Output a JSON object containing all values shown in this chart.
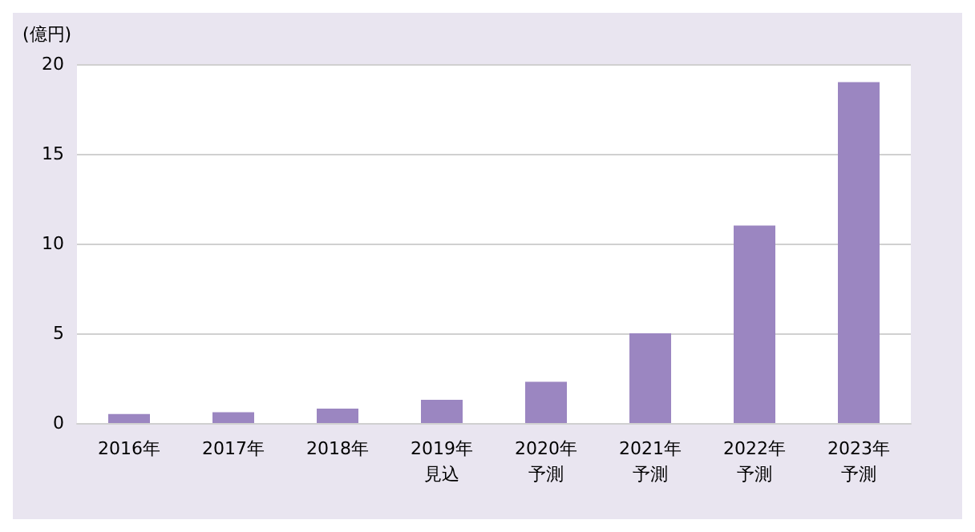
{
  "chart_data": {
    "type": "bar",
    "ylabel": "(億円)",
    "categories": [
      "2016年",
      "2017年",
      "2018年",
      "2019年見込",
      "2020年予測",
      "2021年予測",
      "2022年予測",
      "2023年予測"
    ],
    "values": [
      0.5,
      0.6,
      0.8,
      1.3,
      2.3,
      5,
      11,
      19
    ],
    "color": "#9b86c1",
    "ylim": [
      0,
      20
    ],
    "yticks": [
      0,
      5,
      10,
      15,
      20
    ],
    "grid": "y"
  }
}
